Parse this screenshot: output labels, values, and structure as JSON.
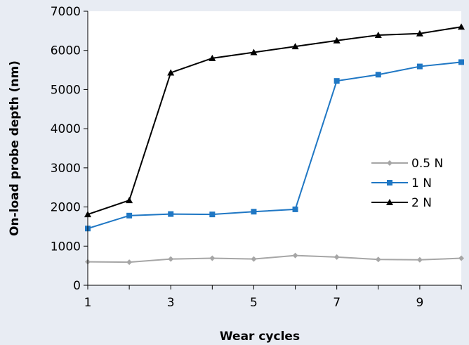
{
  "chart_data": {
    "type": "line",
    "title": "",
    "xlabel": "Wear cycles",
    "ylabel": "On-load probe depth (nm)",
    "xlim": [
      1,
      10
    ],
    "ylim": [
      0,
      7000
    ],
    "x_ticks": [
      1,
      3,
      5,
      7,
      9
    ],
    "y_ticks": [
      0,
      1000,
      2000,
      3000,
      4000,
      5000,
      6000,
      7000
    ],
    "grid": false,
    "legend_position": "right",
    "x": [
      1,
      2,
      3,
      4,
      5,
      6,
      7,
      8,
      9,
      10
    ],
    "series": [
      {
        "name": "0.5 N",
        "marker": "diamond",
        "color": "#a6a6a6",
        "values": [
          600,
          590,
          670,
          690,
          670,
          760,
          720,
          660,
          650,
          690
        ]
      },
      {
        "name": "1 N",
        "marker": "square",
        "color": "#1f77c4",
        "values": [
          1450,
          1780,
          1820,
          1810,
          1880,
          1940,
          5220,
          5380,
          5590,
          5700
        ]
      },
      {
        "name": "2 N",
        "marker": "triangle",
        "color": "#000000",
        "values": [
          1810,
          2170,
          5430,
          5800,
          5950,
          6100,
          6250,
          6390,
          6430,
          6600
        ]
      }
    ]
  }
}
